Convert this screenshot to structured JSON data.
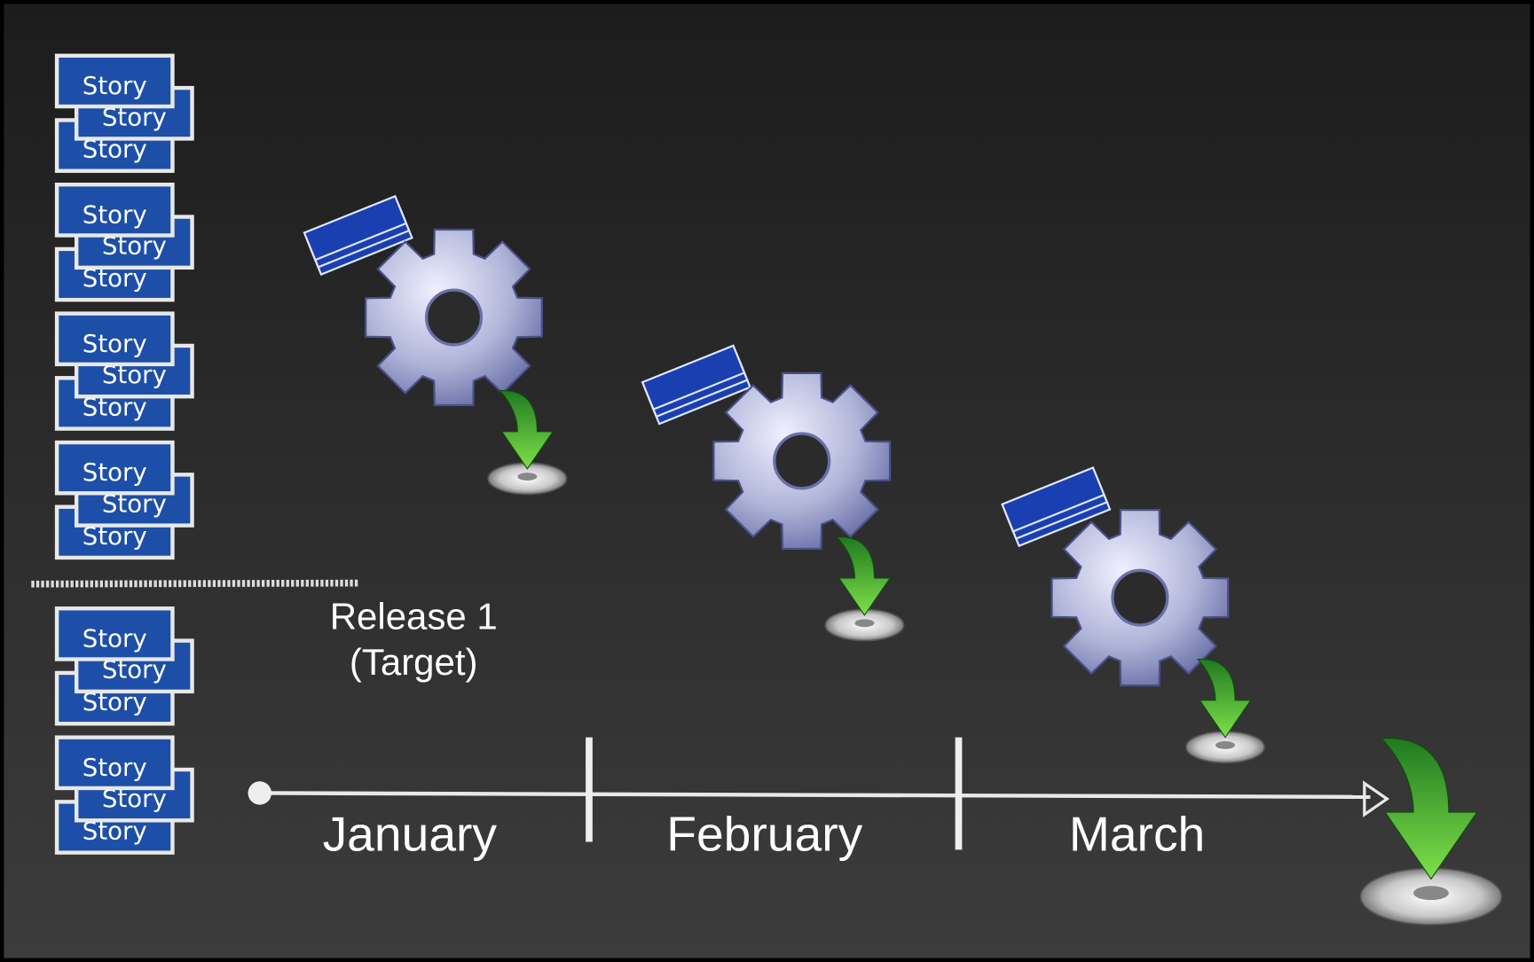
{
  "story_stacks": [
    [
      "Story",
      "Story",
      "Story"
    ],
    [
      "Story",
      "Story",
      "Story"
    ],
    [
      "Story",
      "Story",
      "Story"
    ],
    [
      "Story",
      "Story",
      "Story"
    ],
    [
      "Story",
      "Story",
      "Story"
    ],
    [
      "Story",
      "Story",
      "Story"
    ]
  ],
  "release_label": [
    "Release 1",
    "(Target)"
  ],
  "timeline": {
    "months": [
      "January",
      "February",
      "March"
    ]
  }
}
